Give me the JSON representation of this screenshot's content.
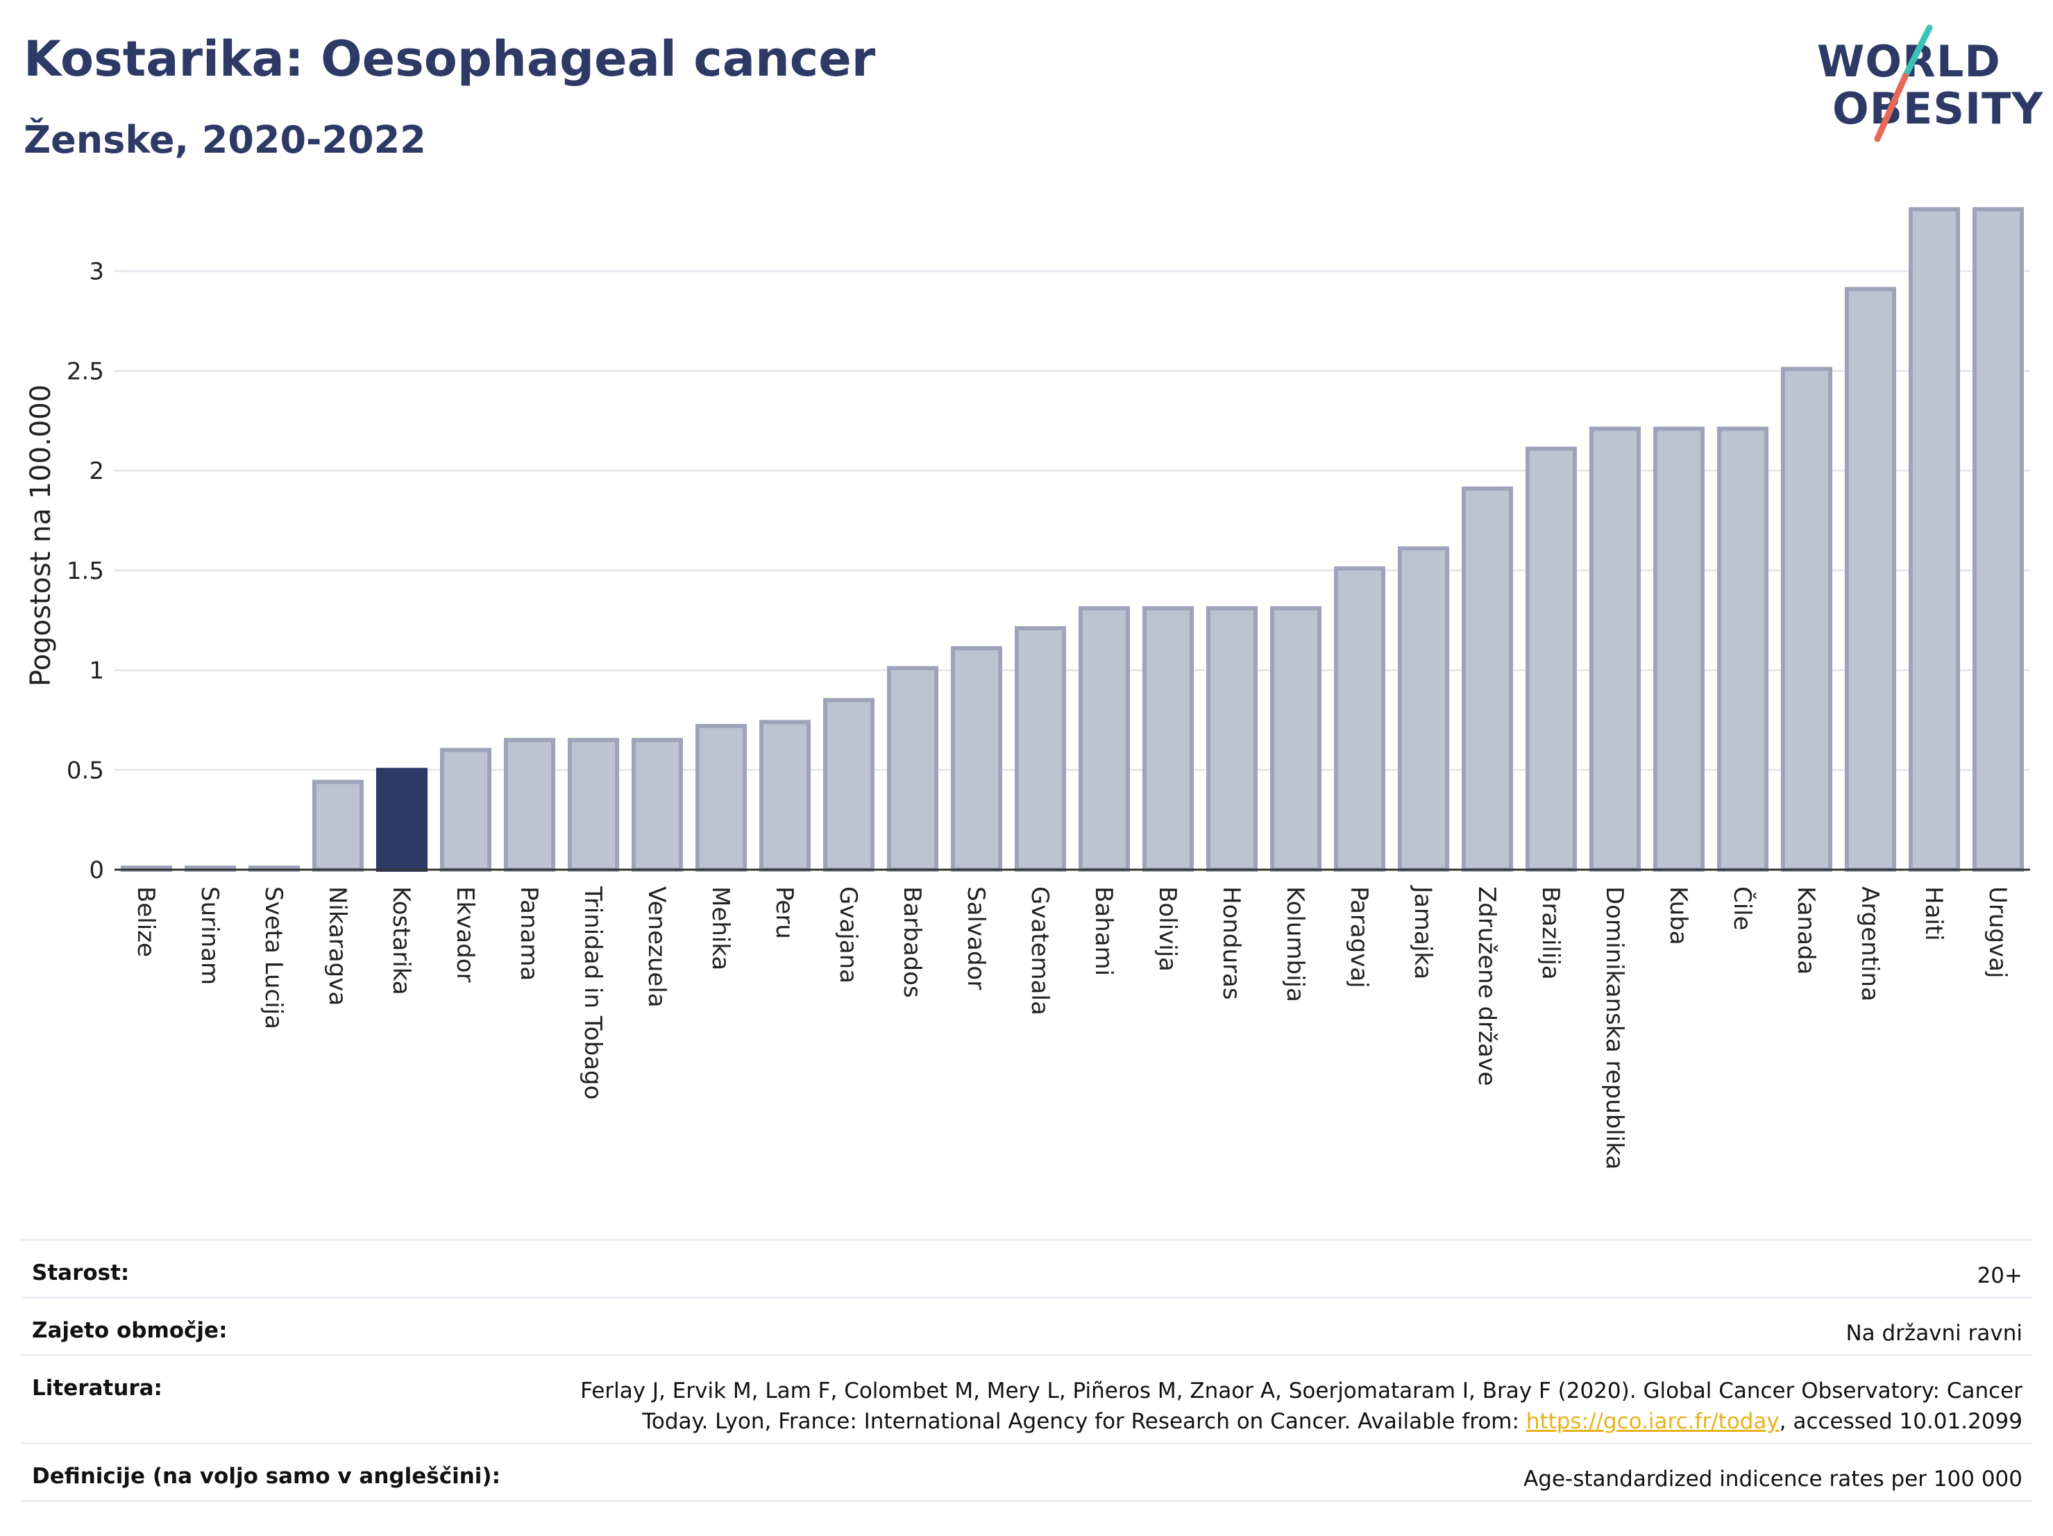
{
  "header": {
    "title": "Kostarika: Oesophageal cancer",
    "subtitle": "Ženske, 2020-2022"
  },
  "logo": {
    "line1": "WORLD",
    "line2": "OBESITY",
    "accent_teal": "#3cc3b8",
    "accent_red": "#e8685a"
  },
  "colors": {
    "highlight": "#2d3a66",
    "bar_fill": "#bfc3d1",
    "bar_stroke": "#9ea3ba"
  },
  "chart_data": {
    "type": "bar",
    "ylabel": "Pogostost na 100.000",
    "ylim": [
      0,
      3.35
    ],
    "yticks": [
      0,
      0.5,
      1,
      1.5,
      2,
      2.5,
      3
    ],
    "ytick_labels": [
      "0",
      "0.5",
      "1",
      "1.5",
      "2",
      "2.5",
      "3"
    ],
    "grid": true,
    "highlight": "Kostarika",
    "categories": [
      "Belize",
      "Surinam",
      "Sveta Lucija",
      "Nikaragva",
      "Kostarika",
      "Ekvador",
      "Panama",
      "Trinidad in Tobago",
      "Venezuela",
      "Mehika",
      "Peru",
      "Gvajana",
      "Barbados",
      "Salvador",
      "Gvatemala",
      "Bahami",
      "Bolivija",
      "Honduras",
      "Kolumbija",
      "Paragvaj",
      "Jamajka",
      "Združene države",
      "Brazilija",
      "Dominikanska republika",
      "Kuba",
      "Čile",
      "Kanada",
      "Argentina",
      "Haiti",
      "Urugvaj"
    ],
    "values": [
      0.01,
      0.01,
      0.01,
      0.44,
      0.5,
      0.6,
      0.65,
      0.65,
      0.65,
      0.72,
      0.74,
      0.85,
      1.01,
      1.11,
      1.21,
      1.31,
      1.31,
      1.31,
      1.31,
      1.51,
      1.61,
      1.91,
      2.11,
      2.21,
      2.21,
      2.21,
      2.51,
      2.91,
      3.31,
      3.31
    ]
  },
  "info": [
    {
      "key": "Starost:",
      "value": "20+"
    },
    {
      "key": "Zajeto območje:",
      "value": "Na državni ravni"
    },
    {
      "key": "Literatura:",
      "value_line1": "Ferlay J, Ervik M, Lam F, Colombet M, Mery L, Piñeros M, Znaor A, Soerjomataram I, Bray F (2020). Global Cancer Observatory: Cancer",
      "value_line2_pre": "Today. Lyon, France: International Agency for Research on Cancer. Available from: ",
      "link": "https://gco.iarc.fr/today",
      "value_line2_post": ", accessed 10.01.2099"
    },
    {
      "key": "Definicije (na voljo samo v angleščini):",
      "value": "Age-standardized indicence rates per 100 000"
    }
  ]
}
